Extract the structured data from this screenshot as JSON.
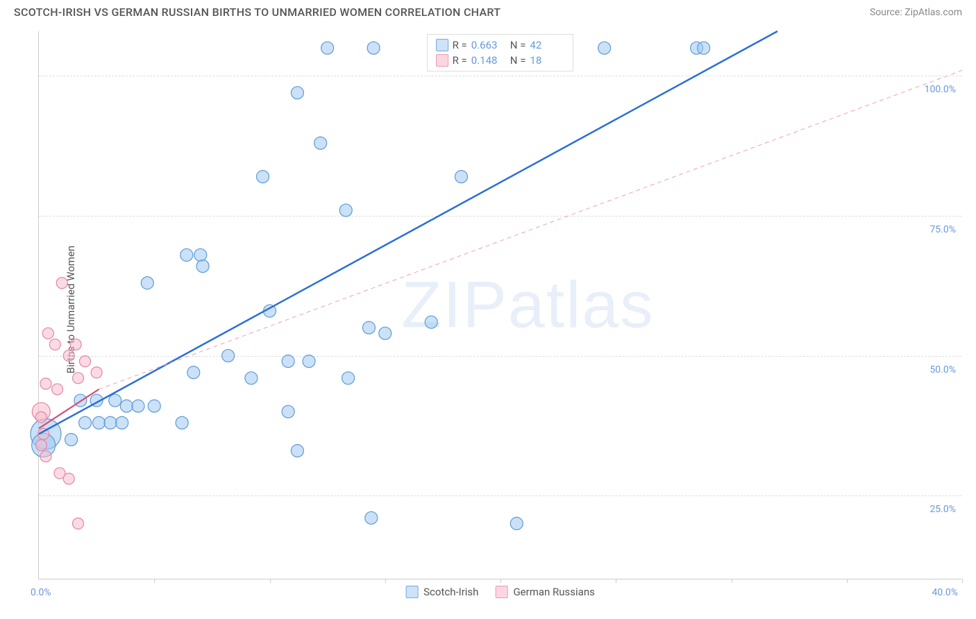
{
  "header": {
    "title": "SCOTCH-IRISH VS GERMAN RUSSIAN BIRTHS TO UNMARRIED WOMEN CORRELATION CHART",
    "source": "Source: ZipAtlas.com"
  },
  "watermark": "ZIPatlas",
  "axes": {
    "y_title": "Births to Unmarried Women",
    "x_min_label": "0.0%",
    "x_max_label": "40.0%",
    "x_tick_count": 8,
    "y_ticks": [
      {
        "v": 25,
        "label": "25.0%"
      },
      {
        "v": 50,
        "label": "50.0%"
      },
      {
        "v": 75,
        "label": "75.0%"
      },
      {
        "v": 100,
        "label": "100.0%"
      }
    ],
    "xlim": [
      0,
      40
    ],
    "ylim": [
      10,
      108
    ],
    "grid_color": "#dddddd",
    "axis_color": "#cccccc",
    "label_color": "#6699dd"
  },
  "legend_top": [
    {
      "color_fill": "#cfe2f8",
      "color_stroke": "#6faadc",
      "r_label": "R =",
      "r_val": "0.663",
      "n_label": "N =",
      "n_val": "42"
    },
    {
      "color_fill": "#fbd7e1",
      "color_stroke": "#e89ab0",
      "r_label": "R =",
      "r_val": "0.148",
      "n_label": "N =",
      "n_val": "18"
    }
  ],
  "legend_bottom": [
    {
      "label": "Scotch-Irish",
      "fill": "#cfe2f8",
      "stroke": "#6faadc"
    },
    {
      "label": "German Russians",
      "fill": "#fbd7e1",
      "stroke": "#e89ab0"
    }
  ],
  "chart": {
    "type": "scatter",
    "background_color": "#ffffff",
    "series": [
      {
        "name": "Scotch-Irish",
        "fill": "rgba(160,200,240,0.55)",
        "stroke": "#5b9bd5",
        "marker_stroke_width": 1.2,
        "trend": {
          "x1": 0,
          "y1": 36,
          "x2": 32,
          "y2": 108,
          "color": "#2a6fd6",
          "width": 2.5,
          "dash": "none"
        },
        "points": [
          {
            "x": 0.3,
            "y": 36,
            "r": 22
          },
          {
            "x": 0.2,
            "y": 34,
            "r": 17
          },
          {
            "x": 12.5,
            "y": 105,
            "r": 9
          },
          {
            "x": 14.5,
            "y": 105,
            "r": 9
          },
          {
            "x": 24.5,
            "y": 105,
            "r": 9
          },
          {
            "x": 28.5,
            "y": 105,
            "r": 9
          },
          {
            "x": 28.8,
            "y": 105,
            "r": 9
          },
          {
            "x": 11.2,
            "y": 97,
            "r": 9
          },
          {
            "x": 12.2,
            "y": 88,
            "r": 9
          },
          {
            "x": 9.7,
            "y": 82,
            "r": 9
          },
          {
            "x": 18.3,
            "y": 82,
            "r": 9
          },
          {
            "x": 13.3,
            "y": 76,
            "r": 9
          },
          {
            "x": 6.4,
            "y": 68,
            "r": 9
          },
          {
            "x": 7.0,
            "y": 68,
            "r": 9
          },
          {
            "x": 7.1,
            "y": 66,
            "r": 9
          },
          {
            "x": 4.7,
            "y": 63,
            "r": 9
          },
          {
            "x": 10.0,
            "y": 58,
            "r": 9
          },
          {
            "x": 17.0,
            "y": 56,
            "r": 9
          },
          {
            "x": 14.3,
            "y": 55,
            "r": 9
          },
          {
            "x": 15.0,
            "y": 54,
            "r": 9
          },
          {
            "x": 8.2,
            "y": 50,
            "r": 9
          },
          {
            "x": 10.8,
            "y": 49,
            "r": 9
          },
          {
            "x": 11.7,
            "y": 49,
            "r": 9
          },
          {
            "x": 6.7,
            "y": 47,
            "r": 9
          },
          {
            "x": 9.2,
            "y": 46,
            "r": 9
          },
          {
            "x": 13.4,
            "y": 46,
            "r": 9
          },
          {
            "x": 1.8,
            "y": 42,
            "r": 9
          },
          {
            "x": 2.5,
            "y": 42,
            "r": 9
          },
          {
            "x": 3.3,
            "y": 42,
            "r": 9
          },
          {
            "x": 3.8,
            "y": 41,
            "r": 9
          },
          {
            "x": 4.3,
            "y": 41,
            "r": 9
          },
          {
            "x": 5.0,
            "y": 41,
            "r": 9
          },
          {
            "x": 10.8,
            "y": 40,
            "r": 9
          },
          {
            "x": 2.0,
            "y": 38,
            "r": 9
          },
          {
            "x": 2.6,
            "y": 38,
            "r": 9
          },
          {
            "x": 3.1,
            "y": 38,
            "r": 9
          },
          {
            "x": 3.6,
            "y": 38,
            "r": 9
          },
          {
            "x": 6.2,
            "y": 38,
            "r": 9
          },
          {
            "x": 1.4,
            "y": 35,
            "r": 9
          },
          {
            "x": 11.2,
            "y": 33,
            "r": 9
          },
          {
            "x": 14.4,
            "y": 21,
            "r": 9
          },
          {
            "x": 20.7,
            "y": 20,
            "r": 9
          }
        ]
      },
      {
        "name": "German Russians",
        "fill": "rgba(245,190,205,0.55)",
        "stroke": "#e585a3",
        "marker_stroke_width": 1.2,
        "trend_solid": {
          "x1": 0,
          "y1": 37,
          "x2": 2.6,
          "y2": 44,
          "color": "#d64d77",
          "width": 2.2
        },
        "trend_dash": {
          "x1": 2.6,
          "y1": 44,
          "x2": 40,
          "y2": 101,
          "color": "#e9a0b5",
          "width": 1,
          "dash": "6,5"
        },
        "points": [
          {
            "x": 0.1,
            "y": 40,
            "r": 13
          },
          {
            "x": 1.0,
            "y": 63,
            "r": 8
          },
          {
            "x": 0.4,
            "y": 54,
            "r": 8
          },
          {
            "x": 0.7,
            "y": 52,
            "r": 8
          },
          {
            "x": 1.6,
            "y": 52,
            "r": 8
          },
          {
            "x": 1.3,
            "y": 50,
            "r": 8
          },
          {
            "x": 2.0,
            "y": 49,
            "r": 8
          },
          {
            "x": 2.5,
            "y": 47,
            "r": 8
          },
          {
            "x": 1.7,
            "y": 46,
            "r": 8
          },
          {
            "x": 0.3,
            "y": 45,
            "r": 8
          },
          {
            "x": 0.8,
            "y": 44,
            "r": 8
          },
          {
            "x": 0.1,
            "y": 39,
            "r": 8
          },
          {
            "x": 0.2,
            "y": 36,
            "r": 8
          },
          {
            "x": 0.1,
            "y": 34,
            "r": 8
          },
          {
            "x": 0.3,
            "y": 32,
            "r": 8
          },
          {
            "x": 0.9,
            "y": 29,
            "r": 8
          },
          {
            "x": 1.3,
            "y": 28,
            "r": 8
          },
          {
            "x": 1.7,
            "y": 20,
            "r": 8
          }
        ]
      }
    ]
  }
}
